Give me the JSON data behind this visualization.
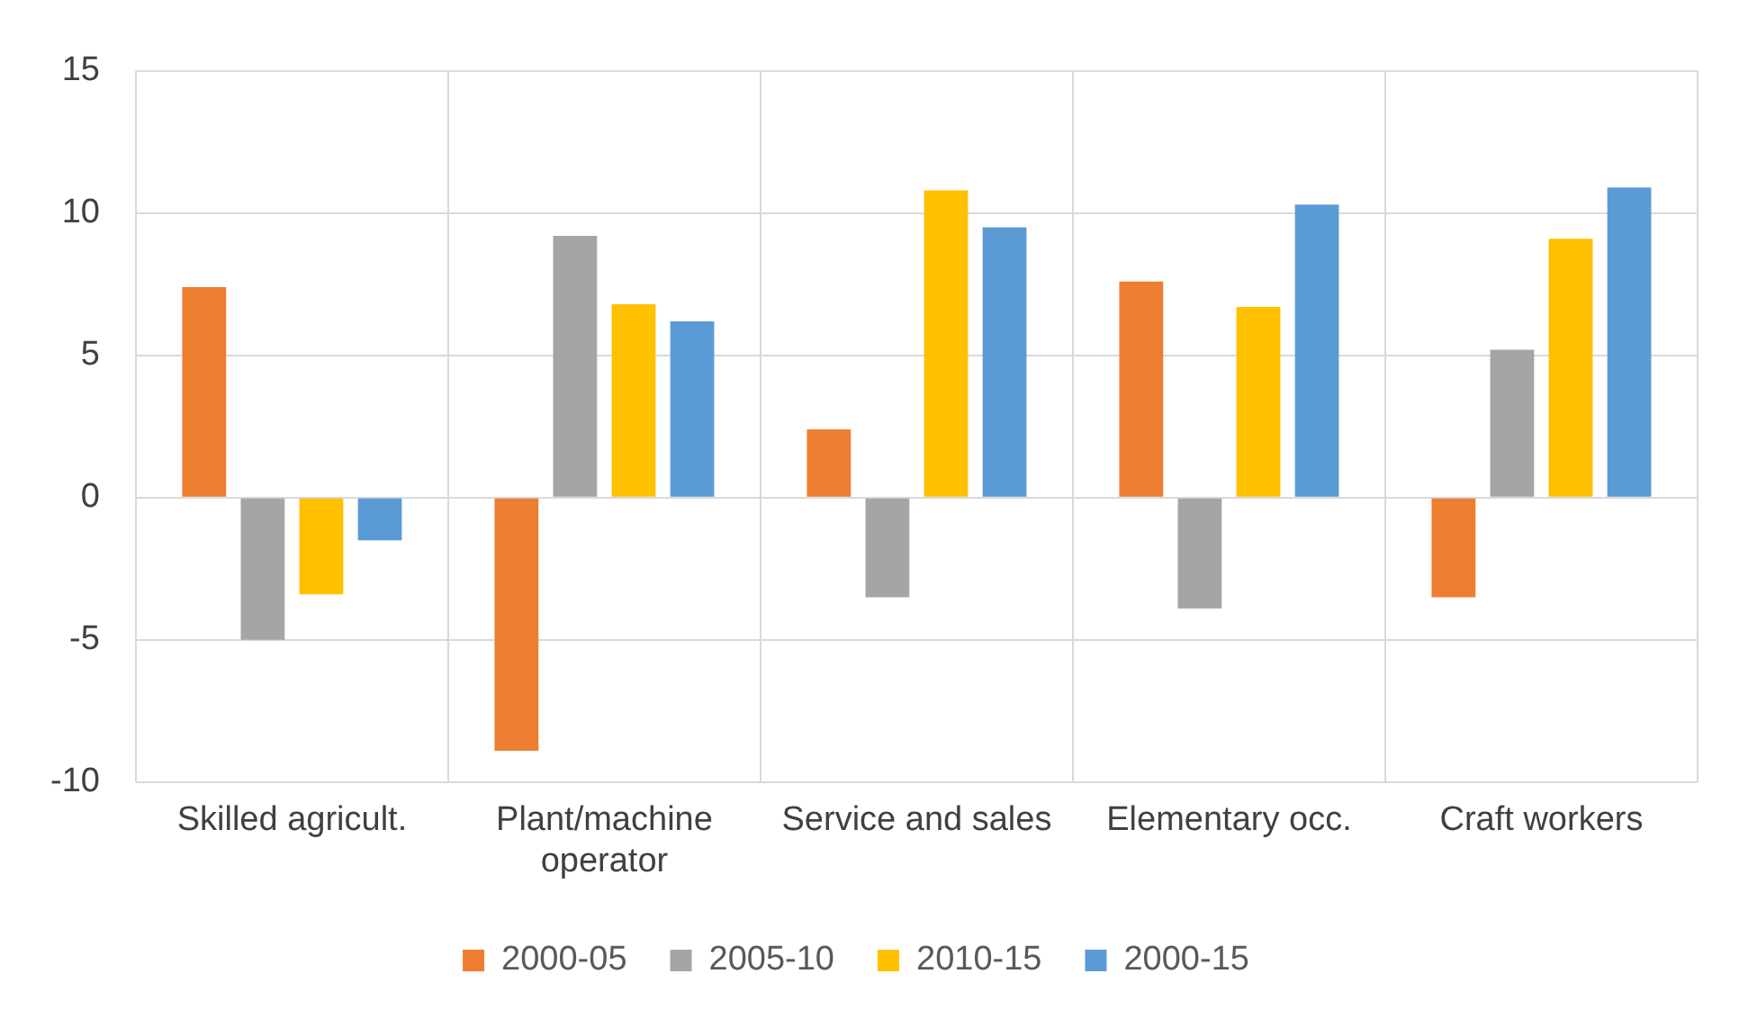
{
  "chart_data": {
    "type": "bar",
    "categories": [
      "Skilled agricult.",
      "Plant/machine operator",
      "Service and sales",
      "Elementary occ.",
      "Craft workers"
    ],
    "series": [
      {
        "name": "2000-05",
        "color": "#ed7d31",
        "values": [
          7.4,
          -8.9,
          2.4,
          7.6,
          -3.5
        ]
      },
      {
        "name": "2005-10",
        "color": "#a5a5a5",
        "values": [
          -5.0,
          9.2,
          -3.5,
          -3.9,
          5.2
        ]
      },
      {
        "name": "2010-15",
        "color": "#ffc000",
        "values": [
          -3.4,
          6.8,
          10.8,
          6.7,
          9.1
        ]
      },
      {
        "name": "2000-15",
        "color": "#5b9bd5",
        "values": [
          -1.5,
          6.2,
          9.5,
          10.3,
          10.9
        ]
      }
    ],
    "ylim": [
      -10,
      15
    ],
    "yticks": [
      -10,
      -5,
      0,
      5,
      10,
      15
    ],
    "grid": true,
    "legend": "bottom"
  }
}
